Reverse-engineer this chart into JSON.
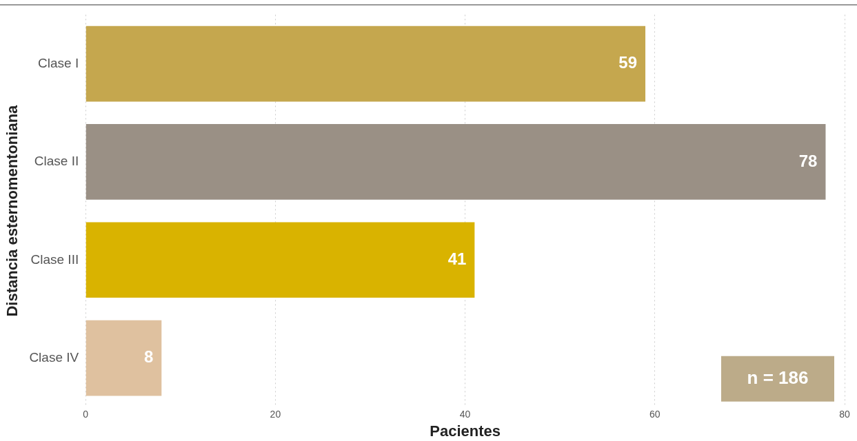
{
  "chart_data": {
    "type": "bar",
    "orientation": "horizontal",
    "xlabel": "Pacientes",
    "ylabel": "Distancia esternomentoniana",
    "categories": [
      "Clase I",
      "Clase II",
      "Clase III",
      "Clase IV"
    ],
    "values": [
      59,
      78,
      41,
      8
    ],
    "colors": [
      "#c5a74e",
      "#9a9085",
      "#d9b300",
      "#dfc19f"
    ],
    "xlim": [
      0,
      80
    ],
    "xticks": [
      0,
      20,
      40,
      60,
      80
    ],
    "grid": "x",
    "legend": false,
    "data_labels": true,
    "annotations": [
      "n = 186"
    ]
  }
}
